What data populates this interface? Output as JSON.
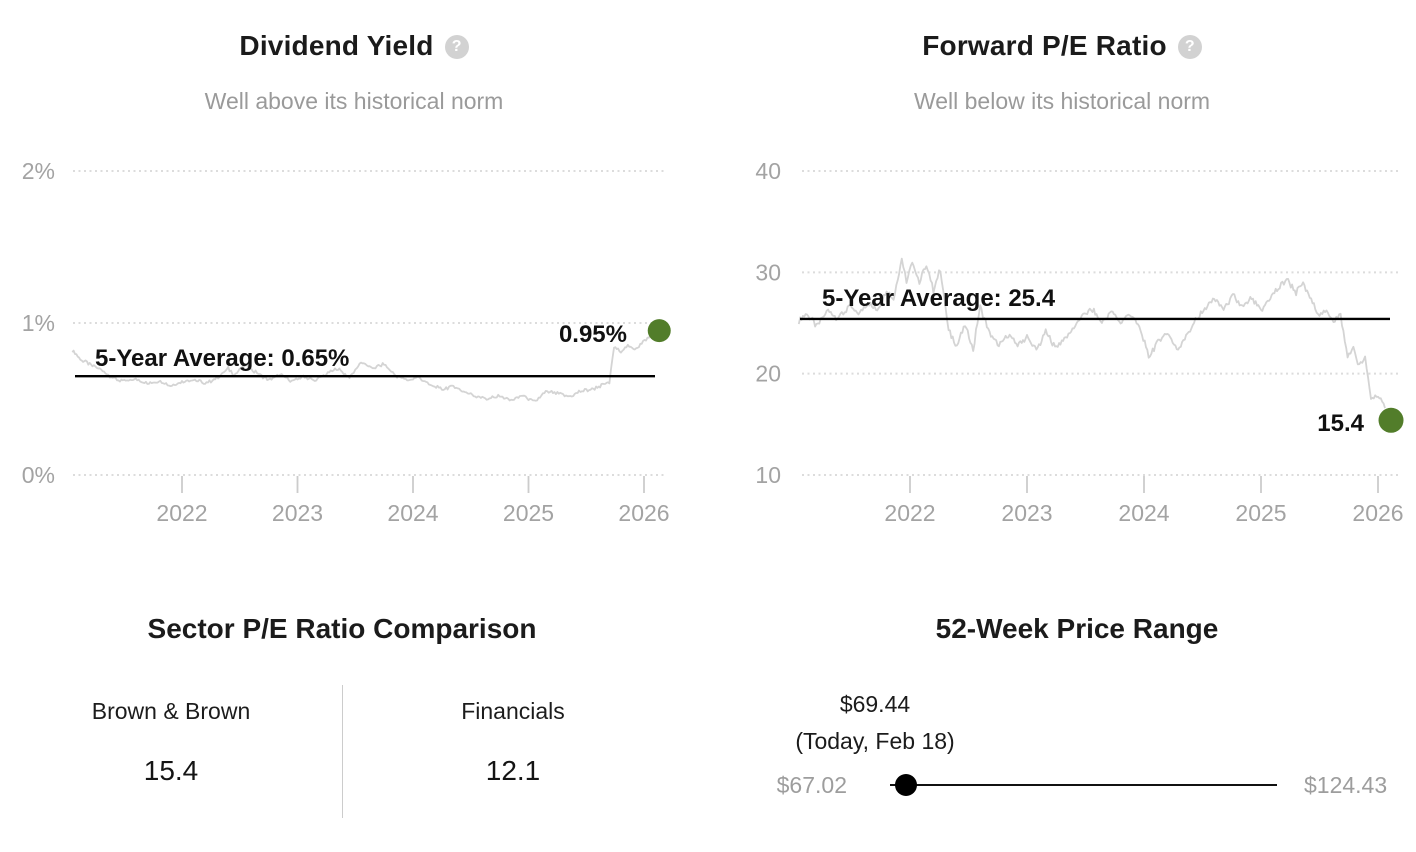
{
  "accent_color": "#527d2a",
  "icons": {
    "help": "?"
  },
  "chart_data": [
    {
      "type": "line",
      "title": "Dividend Yield",
      "subtitle": "Well above its historical norm",
      "average_value": 0.65,
      "average_label": "5-Year Average: 0.65%",
      "current_value": 0.95,
      "current_label": "0.95%",
      "ylim": [
        0,
        2
      ],
      "yticks": [
        {
          "value": 0,
          "label": "0%"
        },
        {
          "value": 1,
          "label": "1%"
        },
        {
          "value": 2,
          "label": "2%"
        }
      ],
      "xticks": [
        {
          "value": 2022,
          "label": "2022"
        },
        {
          "value": 2023,
          "label": "2023"
        },
        {
          "value": 2024,
          "label": "2024"
        },
        {
          "value": 2025,
          "label": "2025"
        },
        {
          "value": 2026,
          "label": "2026"
        }
      ],
      "grid": "dotted-horizontal",
      "legend": "none",
      "line_color": "#d4d4d4",
      "average_line_color": "#000000",
      "marker_color": "#527d2a",
      "series": [
        {
          "name": "Dividend Yield (%)",
          "points": [
            [
              2021.05,
              0.82
            ],
            [
              2021.12,
              0.76
            ],
            [
              2021.2,
              0.73
            ],
            [
              2021.3,
              0.69
            ],
            [
              2021.4,
              0.64
            ],
            [
              2021.5,
              0.615
            ],
            [
              2021.6,
              0.63
            ],
            [
              2021.7,
              0.6
            ],
            [
              2021.8,
              0.62
            ],
            [
              2021.9,
              0.585
            ],
            [
              2022.0,
              0.615
            ],
            [
              2022.1,
              0.63
            ],
            [
              2022.2,
              0.6
            ],
            [
              2022.3,
              0.635
            ],
            [
              2022.4,
              0.7
            ],
            [
              2022.45,
              0.66
            ],
            [
              2022.55,
              0.72
            ],
            [
              2022.65,
              0.67
            ],
            [
              2022.75,
              0.625
            ],
            [
              2022.85,
              0.66
            ],
            [
              2022.95,
              0.615
            ],
            [
              2023.05,
              0.65
            ],
            [
              2023.15,
              0.62
            ],
            [
              2023.25,
              0.665
            ],
            [
              2023.35,
              0.7
            ],
            [
              2023.45,
              0.64
            ],
            [
              2023.55,
              0.745
            ],
            [
              2023.65,
              0.7
            ],
            [
              2023.75,
              0.73
            ],
            [
              2023.85,
              0.655
            ],
            [
              2023.95,
              0.62
            ],
            [
              2024.05,
              0.645
            ],
            [
              2024.15,
              0.59
            ],
            [
              2024.25,
              0.565
            ],
            [
              2024.35,
              0.585
            ],
            [
              2024.45,
              0.545
            ],
            [
              2024.55,
              0.52
            ],
            [
              2024.65,
              0.5
            ],
            [
              2024.75,
              0.52
            ],
            [
              2024.85,
              0.49
            ],
            [
              2024.95,
              0.525
            ],
            [
              2025.05,
              0.48
            ],
            [
              2025.15,
              0.55
            ],
            [
              2025.25,
              0.535
            ],
            [
              2025.35,
              0.515
            ],
            [
              2025.45,
              0.55
            ],
            [
              2025.55,
              0.565
            ],
            [
              2025.62,
              0.585
            ],
            [
              2025.7,
              0.61
            ],
            [
              2025.74,
              0.84
            ],
            [
              2025.8,
              0.815
            ],
            [
              2025.86,
              0.85
            ],
            [
              2025.92,
              0.83
            ],
            [
              2025.98,
              0.865
            ],
            [
              2026.08,
              0.93
            ]
          ]
        }
      ]
    },
    {
      "type": "line",
      "title": "Forward P/E Ratio",
      "subtitle": "Well below its historical norm",
      "average_value": 25.4,
      "average_label": "5-Year Average: 25.4",
      "current_value": 15.4,
      "current_label": "15.4",
      "ylim": [
        10,
        40
      ],
      "yticks": [
        {
          "value": 10,
          "label": "10"
        },
        {
          "value": 20,
          "label": "20"
        },
        {
          "value": 30,
          "label": "30"
        },
        {
          "value": 40,
          "label": "40"
        }
      ],
      "xticks": [
        {
          "value": 2022,
          "label": "2022"
        },
        {
          "value": 2023,
          "label": "2023"
        },
        {
          "value": 2024,
          "label": "2024"
        },
        {
          "value": 2025,
          "label": "2025"
        },
        {
          "value": 2026,
          "label": "2026"
        }
      ],
      "grid": "dotted-horizontal",
      "legend": "none",
      "line_color": "#d4d4d4",
      "average_line_color": "#000000",
      "marker_color": "#527d2a",
      "series": [
        {
          "name": "Forward P/E",
          "points": [
            [
              2021.05,
              25.2
            ],
            [
              2021.12,
              25.9
            ],
            [
              2021.2,
              24.7
            ],
            [
              2021.3,
              26.2
            ],
            [
              2021.38,
              25.5
            ],
            [
              2021.48,
              26.6
            ],
            [
              2021.56,
              25.9
            ],
            [
              2021.64,
              26.9
            ],
            [
              2021.72,
              26.3
            ],
            [
              2021.8,
              28.2
            ],
            [
              2021.86,
              27.3
            ],
            [
              2021.93,
              31.4
            ],
            [
              2021.97,
              29.2
            ],
            [
              2022.02,
              31.2
            ],
            [
              2022.08,
              29.0
            ],
            [
              2022.14,
              30.7
            ],
            [
              2022.2,
              28.2
            ],
            [
              2022.26,
              30.3
            ],
            [
              2022.33,
              24.2
            ],
            [
              2022.4,
              22.8
            ],
            [
              2022.47,
              24.7
            ],
            [
              2022.54,
              22.4
            ],
            [
              2022.6,
              26.6
            ],
            [
              2022.68,
              24.0
            ],
            [
              2022.76,
              22.7
            ],
            [
              2022.84,
              23.8
            ],
            [
              2022.92,
              22.9
            ],
            [
              2023.0,
              23.6
            ],
            [
              2023.08,
              22.3
            ],
            [
              2023.16,
              24.1
            ],
            [
              2023.24,
              22.6
            ],
            [
              2023.32,
              23.4
            ],
            [
              2023.4,
              24.6
            ],
            [
              2023.48,
              25.8
            ],
            [
              2023.56,
              26.3
            ],
            [
              2023.64,
              25.1
            ],
            [
              2023.72,
              26.1
            ],
            [
              2023.8,
              25.0
            ],
            [
              2023.88,
              26.0
            ],
            [
              2023.96,
              24.6
            ],
            [
              2024.04,
              21.7
            ],
            [
              2024.12,
              23.2
            ],
            [
              2024.2,
              24.1
            ],
            [
              2024.28,
              22.4
            ],
            [
              2024.36,
              23.7
            ],
            [
              2024.44,
              25.2
            ],
            [
              2024.52,
              26.4
            ],
            [
              2024.6,
              27.4
            ],
            [
              2024.68,
              26.4
            ],
            [
              2024.76,
              27.7
            ],
            [
              2024.84,
              26.6
            ],
            [
              2024.92,
              27.4
            ],
            [
              2025.0,
              26.1
            ],
            [
              2025.08,
              27.6
            ],
            [
              2025.16,
              28.5
            ],
            [
              2025.22,
              29.4
            ],
            [
              2025.3,
              28.0
            ],
            [
              2025.36,
              28.9
            ],
            [
              2025.44,
              27.0
            ],
            [
              2025.5,
              25.8
            ],
            [
              2025.56,
              26.2
            ],
            [
              2025.62,
              25.3
            ],
            [
              2025.68,
              25.7
            ],
            [
              2025.74,
              21.6
            ],
            [
              2025.79,
              22.6
            ],
            [
              2025.84,
              20.7
            ],
            [
              2025.89,
              21.5
            ],
            [
              2025.94,
              17.6
            ],
            [
              2026.0,
              17.9
            ],
            [
              2026.06,
              16.6
            ]
          ]
        }
      ]
    }
  ],
  "sector_comparison": {
    "title": "Sector P/E Ratio Comparison",
    "columns": [
      {
        "label": "Brown & Brown",
        "value": "15.4"
      },
      {
        "label": "Financials",
        "value": "12.1"
      }
    ]
  },
  "price_range": {
    "title": "52-Week Price Range",
    "current_price_label": "$69.44",
    "current_date_label": "(Today, Feb 18)",
    "low_label": "$67.02",
    "high_label": "$124.43",
    "low_value": 67.02,
    "high_value": 124.43,
    "current_value": 69.44
  }
}
